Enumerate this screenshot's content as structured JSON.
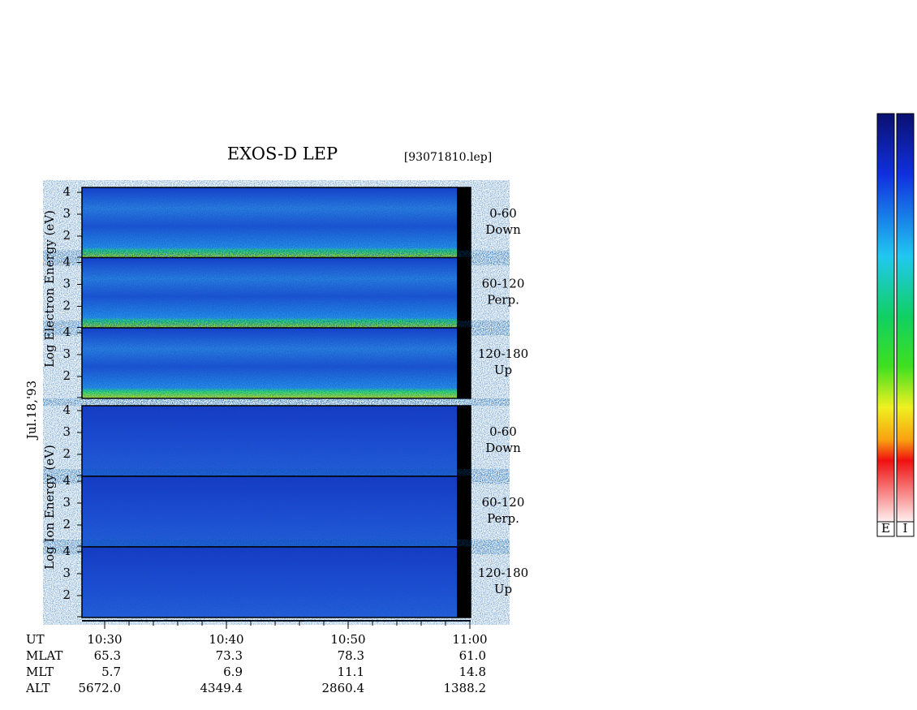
{
  "title": "EXOS-D LEP",
  "file": "[93071810.lep]",
  "date": "Jul.18,'93",
  "groups": [
    {
      "axis_label": "Log  Electron  Energy (eV)",
      "panels": [
        [
          "0-60",
          "Down"
        ],
        [
          "60-120",
          "Perp."
        ],
        [
          "120-180",
          "Up"
        ]
      ]
    },
    {
      "axis_label": "Log  Ion  Energy (eV)",
      "panels": [
        [
          "0-60",
          "Down"
        ],
        [
          "60-120",
          "Perp."
        ],
        [
          "120-180",
          "Up"
        ]
      ]
    }
  ],
  "panel_ticks": [
    "4",
    "3",
    "2"
  ],
  "rows": [
    {
      "name": "UT",
      "values": [
        "10:30",
        "10:40",
        "10:50",
        "11:00"
      ]
    },
    {
      "name": "MLAT",
      "values": [
        "65.3",
        "73.3",
        "78.3",
        "61.0"
      ]
    },
    {
      "name": "MLT",
      "values": [
        "5.7",
        "6.9",
        "11.1",
        "14.8"
      ]
    },
    {
      "name": "ALT",
      "values": [
        "5672.0",
        "4349.4",
        "2860.4",
        "1388.2"
      ]
    }
  ],
  "colorbar_labels": [
    "E",
    "I"
  ]
}
